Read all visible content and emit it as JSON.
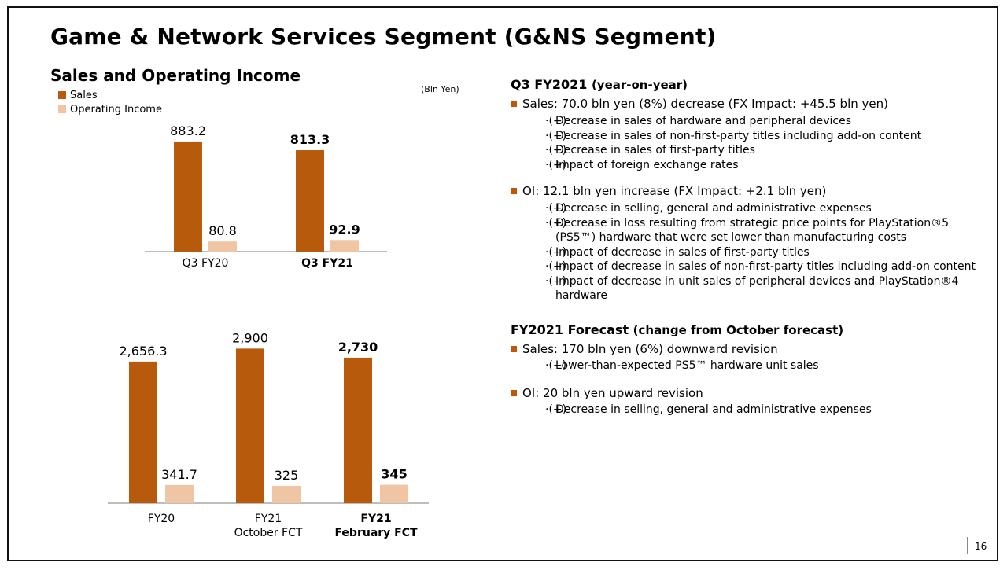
{
  "title": "Game & Network Services Segment (G&NS Segment)",
  "left": {
    "chart_title": "Sales and Operating Income",
    "legend": [
      {
        "label": "Sales",
        "color": "#b85a0c"
      },
      {
        "label": "Operating Income",
        "color": "#f0c5a3"
      }
    ],
    "unit_note": "(Bln Yen)"
  },
  "chart_data": [
    {
      "type": "bar",
      "title": "Sales and Operating Income (Q3)",
      "categories": [
        "Q3 FY20",
        "Q3 FY21"
      ],
      "category_bold": [
        false,
        true
      ],
      "series": [
        {
          "name": "Sales",
          "color": "#b85a0c",
          "values": [
            883.2,
            813.3
          ],
          "labels": [
            "883.2",
            "813.3"
          ]
        },
        {
          "name": "Operating Income",
          "color": "#f0c5a3",
          "values": [
            80.8,
            92.9
          ],
          "labels": [
            "80.8",
            "92.9"
          ]
        }
      ],
      "unit": "Bln Yen"
    },
    {
      "type": "bar",
      "title": "Sales and Operating Income (FY)",
      "categories": [
        [
          "FY20"
        ],
        [
          "FY21",
          "October FCT"
        ],
        [
          "FY21",
          "February FCT"
        ]
      ],
      "category_bold": [
        false,
        false,
        true
      ],
      "series": [
        {
          "name": "Sales",
          "color": "#b85a0c",
          "values": [
            2656.3,
            2900,
            2730
          ],
          "labels": [
            "2,656.3",
            "2,900",
            "2,730"
          ]
        },
        {
          "name": "Operating Income",
          "color": "#f0c5a3",
          "values": [
            341.7,
            325,
            345
          ],
          "labels": [
            "341.7",
            "325",
            "345"
          ]
        }
      ],
      "unit": "Bln Yen"
    }
  ],
  "q3": {
    "title": "Q3 FY2021",
    "subtitle": "(year-on-year)",
    "sales": {
      "headline": "Sales: 70.0 bln yen (8%) decrease (FX Impact: +45.5 bln yen)",
      "items": [
        {
          "mark": "·(−)",
          "text": "Decrease in sales of hardware and peripheral devices"
        },
        {
          "mark": "·(−)",
          "text": "Decrease in sales of non-first-party titles including add-on content"
        },
        {
          "mark": "·(−)",
          "text": "Decrease in sales of first-party titles"
        },
        {
          "mark": "·(+)",
          "text": "Impact of foreign exchange rates"
        }
      ]
    },
    "oi": {
      "headline": "OI: 12.1 bln yen increase (FX Impact: +2.1 bln yen)",
      "items": [
        {
          "mark": "·(+)",
          "text": "Decrease in selling, general and administrative expenses"
        },
        {
          "mark": "·(+)",
          "text": "Decrease in loss resulting from strategic price points for PlayStation®5 (PS5™)  hardware that were set lower than manufacturing costs"
        },
        {
          "mark": "·(−)",
          "text": "Impact of decrease in sales of first-party titles"
        },
        {
          "mark": "·(−)",
          "text": "Impact of decrease in sales of non-first-party titles including add-on content"
        },
        {
          "mark": "·(−)",
          "text": "Impact of decrease in unit sales of peripheral devices and PlayStation®4 hardware"
        }
      ]
    }
  },
  "fy": {
    "title": "FY2021 Forecast",
    "subtitle": "(change from October forecast)",
    "sales": {
      "headline": "Sales: 170 bln yen (6%) downward revision",
      "items": [
        {
          "mark": "·(−)",
          "text": "Lower-than-expected PS5™ hardware unit sales"
        }
      ]
    },
    "oi": {
      "headline": "OI: 20 bln yen upward revision",
      "items": [
        {
          "mark": "·(+)",
          "text": "Decrease in selling, general and administrative expenses"
        }
      ]
    }
  },
  "page_number": "16"
}
